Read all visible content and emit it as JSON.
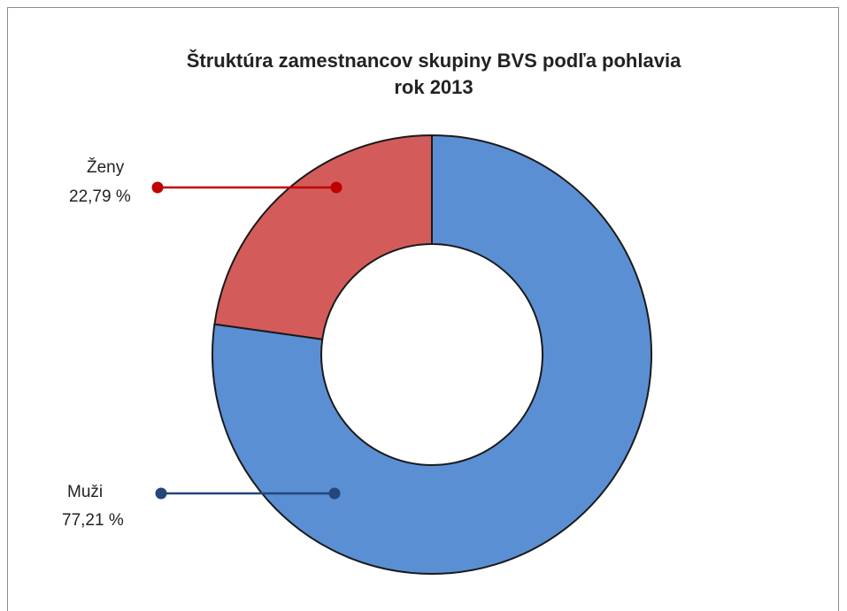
{
  "chart_data": {
    "type": "donut",
    "title": "Štruktúra zamestnancov skupiny BVS podľa pohlavia",
    "subtitle": "rok 2013",
    "categories": [
      "Muži",
      "Ženy"
    ],
    "values": [
      77.21,
      22.79
    ],
    "value_labels": [
      "77,21 %",
      "22,79 %"
    ],
    "colors": [
      "#5b8fd4",
      "#d35c5a"
    ],
    "label_colors": [
      "#24467a",
      "#c00000"
    ]
  }
}
